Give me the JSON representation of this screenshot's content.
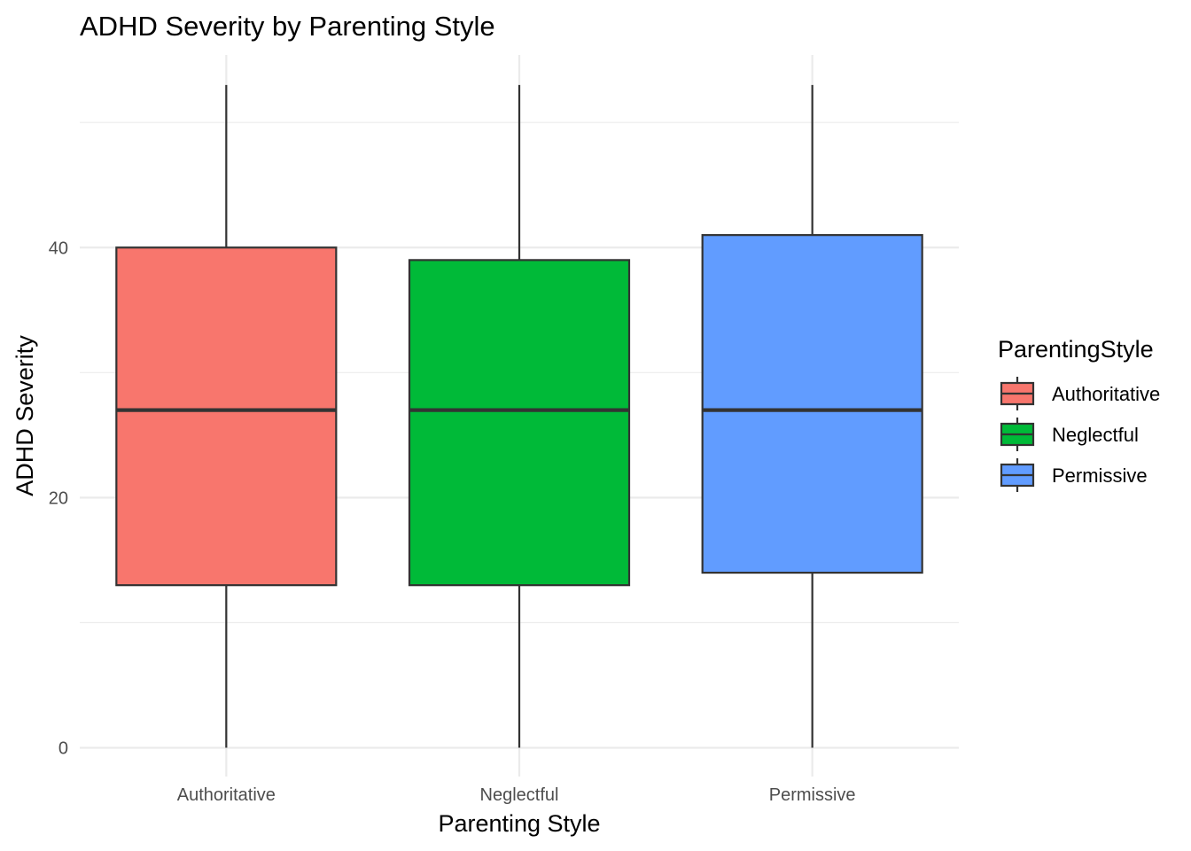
{
  "chart_data": {
    "type": "box",
    "title": "ADHD Severity by Parenting Style",
    "xlabel": "Parenting Style",
    "ylabel": "ADHD Severity",
    "ylim": [
      -2.3,
      55.4
    ],
    "yticks": [
      0,
      20,
      40
    ],
    "grid": true,
    "legend": {
      "title": "ParentingStyle",
      "position": "right",
      "entries": [
        "Authoritative",
        "Neglectful",
        "Permissive"
      ]
    },
    "categories": [
      "Authoritative",
      "Neglectful",
      "Permissive"
    ],
    "series": [
      {
        "name": "Authoritative",
        "color": "#F8766D",
        "min": 0,
        "q1": 13,
        "median": 27,
        "q3": 40,
        "max": 53
      },
      {
        "name": "Neglectful",
        "color": "#00BA38",
        "min": 0,
        "q1": 13,
        "median": 27,
        "q3": 39,
        "max": 53
      },
      {
        "name": "Permissive",
        "color": "#619CFF",
        "min": 0,
        "q1": 14,
        "median": 27,
        "q3": 41,
        "max": 53
      }
    ]
  }
}
